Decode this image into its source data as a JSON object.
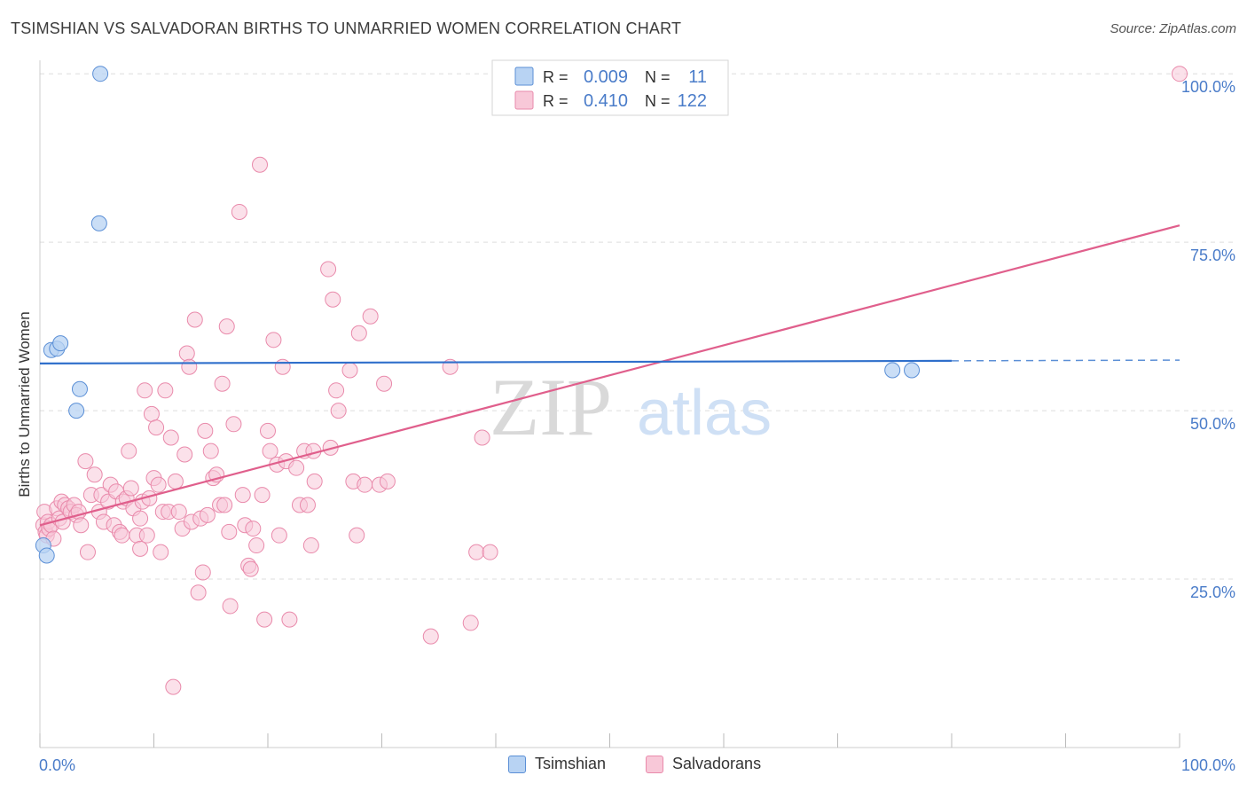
{
  "title": "TSIMSHIAN VS SALVADORAN BIRTHS TO UNMARRIED WOMEN CORRELATION CHART",
  "source": "Source: ZipAtlas.com",
  "watermark": {
    "zip": "ZIP",
    "atlas": "atlas"
  },
  "colors": {
    "tsimshian_fill": "#b8d3f3",
    "tsimshian_stroke": "#5b8fd6",
    "tsimshian_line": "#2f6fcb",
    "salvadoran_fill": "#f8c8d8",
    "salvadoran_stroke": "#e98aab",
    "salvadoran_line": "#e05f8c",
    "axis_label": "#4a7cc9",
    "grid": "#dddddd"
  },
  "legend": {
    "r_label": "R =",
    "n_label": "N =",
    "tsimshian": {
      "r": "0.009",
      "n": "11"
    },
    "salvadoran": {
      "r": "0.410",
      "n": "122"
    }
  },
  "chart_data": {
    "type": "scatter",
    "title": "TSIMSHIAN VS SALVADORAN BIRTHS TO UNMARRIED WOMEN CORRELATION CHART",
    "xlabel": "",
    "ylabel": "Births to Unmarried Women",
    "xlim": [
      0,
      100
    ],
    "ylim": [
      0,
      102
    ],
    "x_tick_labels": [
      "0.0%",
      "100.0%"
    ],
    "y_ticks": [
      {
        "value": 25,
        "label": "25.0%"
      },
      {
        "value": 50,
        "label": "50.0%"
      },
      {
        "value": 75,
        "label": "75.0%"
      },
      {
        "value": 100,
        "label": "100.0%"
      }
    ],
    "series": [
      {
        "name": "Tsimshian",
        "points": [
          [
            0.3,
            30.0
          ],
          [
            0.6,
            28.5
          ],
          [
            1.0,
            59.0
          ],
          [
            1.5,
            59.2
          ],
          [
            1.8,
            60.0
          ],
          [
            3.5,
            53.2
          ],
          [
            3.2,
            50.0
          ],
          [
            5.2,
            77.8
          ],
          [
            5.3,
            100.0
          ],
          [
            74.8,
            56.0
          ],
          [
            76.5,
            56.0
          ]
        ],
        "trend": {
          "x0": 0,
          "y0": 57.0,
          "x1": 80,
          "y1": 57.4,
          "dash_x1": 100,
          "dash_y1": 57.5
        }
      },
      {
        "name": "Salvadorans",
        "points": [
          [
            0.3,
            33.0
          ],
          [
            0.4,
            35.0
          ],
          [
            0.5,
            32.0
          ],
          [
            0.6,
            31.5
          ],
          [
            0.7,
            33.5
          ],
          [
            0.8,
            32.5
          ],
          [
            1.0,
            33.0
          ],
          [
            1.2,
            31.0
          ],
          [
            1.5,
            35.5
          ],
          [
            1.7,
            34.0
          ],
          [
            1.9,
            36.5
          ],
          [
            2.0,
            33.5
          ],
          [
            2.2,
            36.0
          ],
          [
            2.5,
            35.5
          ],
          [
            2.7,
            35.0
          ],
          [
            3.0,
            36.0
          ],
          [
            3.2,
            34.5
          ],
          [
            3.4,
            35.0
          ],
          [
            3.6,
            33.0
          ],
          [
            4.0,
            42.5
          ],
          [
            4.2,
            29.0
          ],
          [
            4.5,
            37.5
          ],
          [
            4.8,
            40.5
          ],
          [
            5.2,
            35.0
          ],
          [
            5.4,
            37.5
          ],
          [
            5.6,
            33.5
          ],
          [
            6.0,
            36.5
          ],
          [
            6.2,
            39.0
          ],
          [
            6.5,
            33.0
          ],
          [
            6.7,
            38.0
          ],
          [
            7.0,
            32.0
          ],
          [
            7.2,
            31.5
          ],
          [
            7.3,
            36.5
          ],
          [
            7.6,
            37.0
          ],
          [
            7.8,
            44.0
          ],
          [
            8.0,
            38.5
          ],
          [
            8.2,
            35.5
          ],
          [
            8.5,
            31.5
          ],
          [
            8.8,
            34.0
          ],
          [
            8.8,
            29.5
          ],
          [
            9.0,
            36.5
          ],
          [
            9.2,
            53.0
          ],
          [
            9.4,
            31.5
          ],
          [
            9.6,
            37.0
          ],
          [
            9.8,
            49.5
          ],
          [
            10.0,
            40.0
          ],
          [
            10.2,
            47.5
          ],
          [
            10.4,
            39.0
          ],
          [
            10.6,
            29.0
          ],
          [
            10.8,
            35.0
          ],
          [
            11.0,
            53.0
          ],
          [
            11.3,
            35.0
          ],
          [
            11.5,
            46.0
          ],
          [
            11.7,
            9.0
          ],
          [
            11.9,
            39.5
          ],
          [
            12.2,
            35.0
          ],
          [
            12.5,
            32.5
          ],
          [
            12.7,
            43.5
          ],
          [
            12.9,
            58.5
          ],
          [
            13.1,
            56.5
          ],
          [
            13.3,
            33.5
          ],
          [
            13.6,
            63.5
          ],
          [
            13.9,
            23.0
          ],
          [
            14.1,
            34.0
          ],
          [
            14.3,
            26.0
          ],
          [
            14.5,
            47.0
          ],
          [
            14.7,
            34.5
          ],
          [
            15.0,
            44.0
          ],
          [
            15.2,
            40.0
          ],
          [
            15.5,
            40.5
          ],
          [
            15.8,
            36.0
          ],
          [
            16.0,
            54.0
          ],
          [
            16.2,
            36.0
          ],
          [
            16.4,
            62.5
          ],
          [
            16.6,
            32.0
          ],
          [
            16.7,
            21.0
          ],
          [
            17.0,
            48.0
          ],
          [
            17.5,
            79.5
          ],
          [
            17.8,
            37.5
          ],
          [
            18.0,
            33.0
          ],
          [
            18.3,
            27.0
          ],
          [
            18.5,
            26.5
          ],
          [
            18.7,
            32.5
          ],
          [
            19.0,
            30.0
          ],
          [
            19.3,
            86.5
          ],
          [
            19.5,
            37.5
          ],
          [
            19.7,
            19.0
          ],
          [
            20.0,
            47.0
          ],
          [
            20.2,
            44.0
          ],
          [
            20.5,
            60.5
          ],
          [
            20.8,
            42.0
          ],
          [
            21.0,
            31.5
          ],
          [
            21.3,
            56.5
          ],
          [
            21.6,
            42.5
          ],
          [
            21.9,
            19.0
          ],
          [
            22.5,
            41.5
          ],
          [
            22.8,
            36.0
          ],
          [
            23.2,
            44.0
          ],
          [
            23.5,
            36.0
          ],
          [
            23.8,
            30.0
          ],
          [
            24.0,
            44.0
          ],
          [
            24.1,
            39.5
          ],
          [
            25.3,
            71.0
          ],
          [
            25.5,
            44.5
          ],
          [
            25.7,
            66.5
          ],
          [
            26.0,
            53.0
          ],
          [
            26.2,
            50.0
          ],
          [
            27.2,
            56.0
          ],
          [
            27.5,
            39.5
          ],
          [
            27.8,
            31.5
          ],
          [
            28.0,
            61.5
          ],
          [
            28.5,
            39.0
          ],
          [
            29.0,
            64.0
          ],
          [
            29.8,
            39.0
          ],
          [
            30.2,
            54.0
          ],
          [
            30.5,
            39.5
          ],
          [
            34.3,
            16.5
          ],
          [
            36.0,
            56.5
          ],
          [
            37.8,
            18.5
          ],
          [
            38.3,
            29.0
          ],
          [
            38.8,
            46.0
          ],
          [
            39.5,
            29.0
          ],
          [
            100.0,
            100.0
          ]
        ],
        "trend": {
          "x0": 0,
          "y0": 33.0,
          "x1": 100,
          "y1": 77.5
        }
      }
    ],
    "legend": [
      "Tsimshian",
      "Salvadorans"
    ]
  }
}
